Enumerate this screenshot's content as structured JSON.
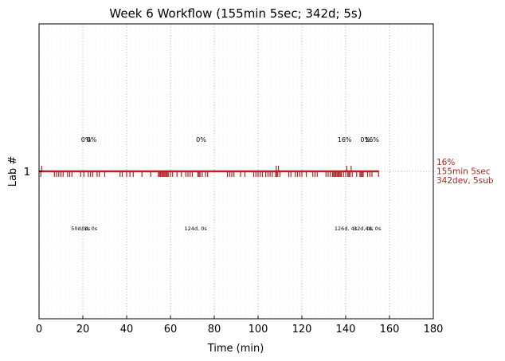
{
  "chart_data": {
    "type": "line",
    "title": "Week 6 Workflow (155min 5sec; 342d; 5s)",
    "xlabel": "Time (min)",
    "ylabel": "Lab #",
    "xlim": [
      0,
      180
    ],
    "xticks": [
      "0",
      "20",
      "40",
      "60",
      "80",
      "100",
      "120",
      "140",
      "160",
      "180"
    ],
    "yticks": [
      "1"
    ],
    "grid": "vertical dotted",
    "line_color": "#b22222",
    "series": [
      {
        "lab": "1",
        "x": [
          0,
          155
        ],
        "y": [
          1,
          1
        ]
      }
    ],
    "event_ticks": [
      0.8,
      7,
      8,
      9,
      10,
      11,
      13,
      14,
      15,
      19,
      20.5,
      22.5,
      23.5,
      24.5,
      26.5,
      27.5,
      30,
      37,
      38,
      40,
      41.5,
      43,
      47,
      51,
      54.5,
      55,
      55.5,
      56,
      56.5,
      57,
      57.5,
      58,
      58.5,
      59,
      60,
      61,
      63,
      65,
      67,
      68,
      69,
      70,
      72.5,
      73,
      73.5,
      74.5,
      76,
      77,
      86,
      87,
      88,
      89,
      92,
      94,
      98,
      99,
      100,
      101,
      102,
      103.5,
      104.5,
      105.5,
      106.5,
      108,
      108.5,
      109,
      110,
      114,
      115,
      117,
      118,
      119,
      120,
      122,
      125,
      126,
      127,
      131,
      132,
      133,
      134,
      134.5,
      135,
      135.5,
      136,
      136.5,
      137,
      137.5,
      138,
      139,
      140,
      141,
      141.5,
      142,
      143,
      145,
      146.5,
      147,
      147.5,
      148,
      150,
      151,
      152,
      155
    ],
    "upper_labels": [
      {
        "x": 21.5,
        "text": "0%"
      },
      {
        "x": 24.0,
        "text": "0%"
      },
      {
        "x": 74.0,
        "text": "0%"
      },
      {
        "x": 139.5,
        "text": "16%"
      },
      {
        "x": 149.0,
        "text": "0%"
      },
      {
        "x": 152.0,
        "text": "16%"
      }
    ],
    "lower_labels": [
      {
        "x": 19.0,
        "text": "50d, 1s"
      },
      {
        "x": 23.0,
        "text": "0d, 0s"
      },
      {
        "x": 71.5,
        "text": "124d, 0s"
      },
      {
        "x": 140.0,
        "text": "126d, 4s"
      },
      {
        "x": 148.0,
        "text": "32d, 0s"
      },
      {
        "x": 152.5,
        "text": "4d, 0s"
      }
    ],
    "side_label": [
      "16%",
      "155min 5sec",
      "342dev, 5sub"
    ]
  }
}
